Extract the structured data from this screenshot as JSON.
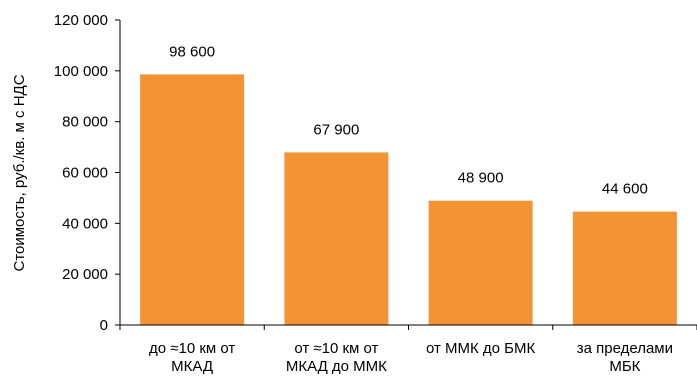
{
  "chart_data": {
    "type": "bar",
    "categories": [
      [
        "до ≈10 км от",
        "МКАД"
      ],
      [
        "от ≈10 км от",
        "МКАД до ММК"
      ],
      [
        "от ММК до БМК"
      ],
      [
        "за пределами",
        "МБК"
      ]
    ],
    "values": [
      98600,
      67900,
      48900,
      44600
    ],
    "data_labels": [
      "98 600",
      "67 900",
      "48 900",
      "44 600"
    ],
    "ylabel": "Стоимость, руб./кв. м с НДС",
    "xlabel": "",
    "ylim": [
      0,
      120000
    ],
    "yticks": [
      0,
      20000,
      40000,
      60000,
      80000,
      100000,
      120000
    ],
    "ytick_labels": [
      "0",
      "20 000",
      "40 000",
      "60 000",
      "80 000",
      "100 000",
      "120 000"
    ],
    "bar_color": "#F39336",
    "grid": false,
    "legend": "none"
  }
}
